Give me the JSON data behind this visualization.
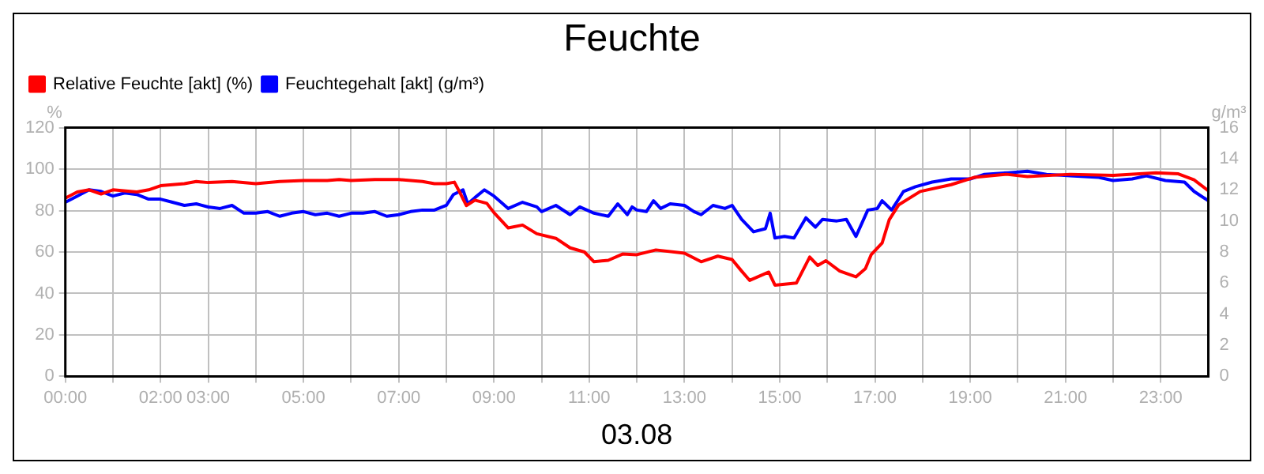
{
  "chart_data": {
    "type": "line",
    "title": "Feuchte",
    "xlabel": "03.08",
    "ylabel": "%",
    "y2label": "g/m³",
    "xlim": [
      0,
      24
    ],
    "xticks": [
      {
        "value": 0,
        "label": "00:00"
      },
      {
        "value": 1,
        "label": null
      },
      {
        "value": 2,
        "label": "02:00"
      },
      {
        "value": 3,
        "label": "03:00"
      },
      {
        "value": 4,
        "label": null
      },
      {
        "value": 5,
        "label": "05:00"
      },
      {
        "value": 6,
        "label": null
      },
      {
        "value": 7,
        "label": "07:00"
      },
      {
        "value": 8,
        "label": null
      },
      {
        "value": 9,
        "label": "09:00"
      },
      {
        "value": 10,
        "label": null
      },
      {
        "value": 11,
        "label": "11:00"
      },
      {
        "value": 12,
        "label": null
      },
      {
        "value": 13,
        "label": "13:00"
      },
      {
        "value": 14,
        "label": null
      },
      {
        "value": 15,
        "label": "15:00"
      },
      {
        "value": 16,
        "label": null
      },
      {
        "value": 17,
        "label": "17:00"
      },
      {
        "value": 18,
        "label": null
      },
      {
        "value": 19,
        "label": "19:00"
      },
      {
        "value": 20,
        "label": null
      },
      {
        "value": 21,
        "label": "21:00"
      },
      {
        "value": 22,
        "label": null
      },
      {
        "value": 23,
        "label": "23:00"
      }
    ],
    "ylim": [
      0,
      120
    ],
    "yticks": [
      0,
      20,
      40,
      60,
      80,
      100,
      120
    ],
    "y2lim": [
      0,
      16
    ],
    "y2ticks": [
      0,
      2,
      4,
      6,
      8,
      10,
      12,
      14,
      16
    ],
    "grid": true,
    "legend": "top left",
    "marker": "none",
    "line_style": "solid",
    "series": [
      {
        "name": "Relative Feuchte [akt] (%)",
        "color": "#ff0000",
        "x": [
          0,
          0.25,
          0.5,
          0.75,
          1,
          1.5,
          1.75,
          2,
          2.5,
          2.75,
          3,
          3.5,
          4,
          4.5,
          5,
          5.5,
          5.75,
          6,
          6.5,
          7,
          7.5,
          7.75,
          8,
          8.17,
          8.3,
          8.42,
          8.6,
          8.85,
          9,
          9.3,
          9.6,
          9.9,
          10.3,
          10.6,
          10.9,
          11.1,
          11.4,
          11.7,
          12,
          12.4,
          13,
          13.35,
          13.7,
          14,
          14.2,
          14.37,
          14.77,
          14.9,
          15.35,
          15.63,
          15.8,
          15.97,
          16.26,
          16.6,
          16.8,
          16.92,
          17.15,
          17.3,
          17.5,
          17.95,
          18.6,
          19.08,
          19.76,
          20.2,
          21.1,
          22,
          22.9,
          23.37,
          23.7,
          24
        ],
        "values": [
          86,
          89,
          90,
          88,
          90,
          89,
          90,
          92,
          93,
          94,
          93.5,
          94,
          93,
          94,
          94.5,
          94.5,
          95,
          94.5,
          95,
          95,
          94,
          93,
          93,
          93.7,
          88,
          82.4,
          85,
          83.5,
          79,
          71.6,
          73,
          68.8,
          66.6,
          62,
          60,
          55.3,
          56,
          59,
          58.7,
          61,
          59.4,
          55.3,
          58,
          56.4,
          50.8,
          46.3,
          50.3,
          44,
          45,
          57.6,
          53.5,
          55.8,
          50.8,
          48,
          52,
          58.7,
          64.3,
          75.6,
          82.8,
          89.2,
          92.5,
          96,
          97.5,
          96.4,
          97.5,
          97,
          98.2,
          97.7,
          94.8,
          89.6
        ]
      },
      {
        "name": "Feuchtegehalt [akt] (g/m³)",
        "color": "#0000ff",
        "axis": "y2",
        "x": [
          0,
          0.25,
          0.5,
          0.75,
          1,
          1.25,
          1.5,
          1.75,
          2,
          2.25,
          2.5,
          2.75,
          3,
          3.25,
          3.5,
          3.75,
          4,
          4.25,
          4.5,
          4.75,
          5,
          5.25,
          5.5,
          5.75,
          6,
          6.25,
          6.5,
          6.75,
          7,
          7.25,
          7.5,
          7.75,
          8,
          8.15,
          8.35,
          8.45,
          8.6,
          8.8,
          9,
          9.3,
          9.6,
          9.9,
          10,
          10.3,
          10.6,
          10.8,
          11.1,
          11.4,
          11.6,
          11.8,
          11.9,
          12,
          12.2,
          12.35,
          12.5,
          12.7,
          13,
          13.2,
          13.35,
          13.6,
          13.85,
          14,
          14.2,
          14.45,
          14.7,
          14.8,
          14.9,
          15.1,
          15.3,
          15.55,
          15.75,
          15.9,
          16.2,
          16.4,
          16.6,
          16.85,
          17.05,
          17.15,
          17.35,
          17.6,
          17.85,
          18.2,
          18.6,
          19,
          19.3,
          19.8,
          20.2,
          20.6,
          21.1,
          21.7,
          22,
          22.4,
          22.7,
          23.1,
          23.5,
          23.7,
          24
        ],
        "values": [
          11.2,
          11.6,
          12.0,
          11.9,
          11.6,
          11.8,
          11.7,
          11.4,
          11.4,
          11.2,
          11.0,
          11.1,
          10.9,
          10.8,
          11.0,
          10.5,
          10.5,
          10.6,
          10.3,
          10.5,
          10.6,
          10.4,
          10.5,
          10.3,
          10.5,
          10.5,
          10.6,
          10.3,
          10.4,
          10.6,
          10.7,
          10.7,
          11.0,
          11.7,
          12.0,
          11.1,
          11.5,
          12.0,
          11.6,
          10.8,
          11.2,
          10.9,
          10.6,
          11.0,
          10.4,
          10.9,
          10.5,
          10.3,
          11.1,
          10.4,
          10.9,
          10.7,
          10.6,
          11.3,
          10.8,
          11.1,
          11.0,
          10.6,
          10.4,
          11.0,
          10.8,
          11.0,
          10.1,
          9.3,
          9.5,
          10.5,
          8.9,
          9.0,
          8.9,
          10.2,
          9.6,
          10.1,
          10.0,
          10.1,
          9.0,
          10.7,
          10.8,
          11.3,
          10.7,
          11.9,
          12.2,
          12.5,
          12.7,
          12.7,
          13.0,
          13.1,
          13.2,
          13.0,
          12.9,
          12.8,
          12.6,
          12.7,
          12.9,
          12.6,
          12.5,
          11.9,
          11.3
        ]
      }
    ]
  }
}
